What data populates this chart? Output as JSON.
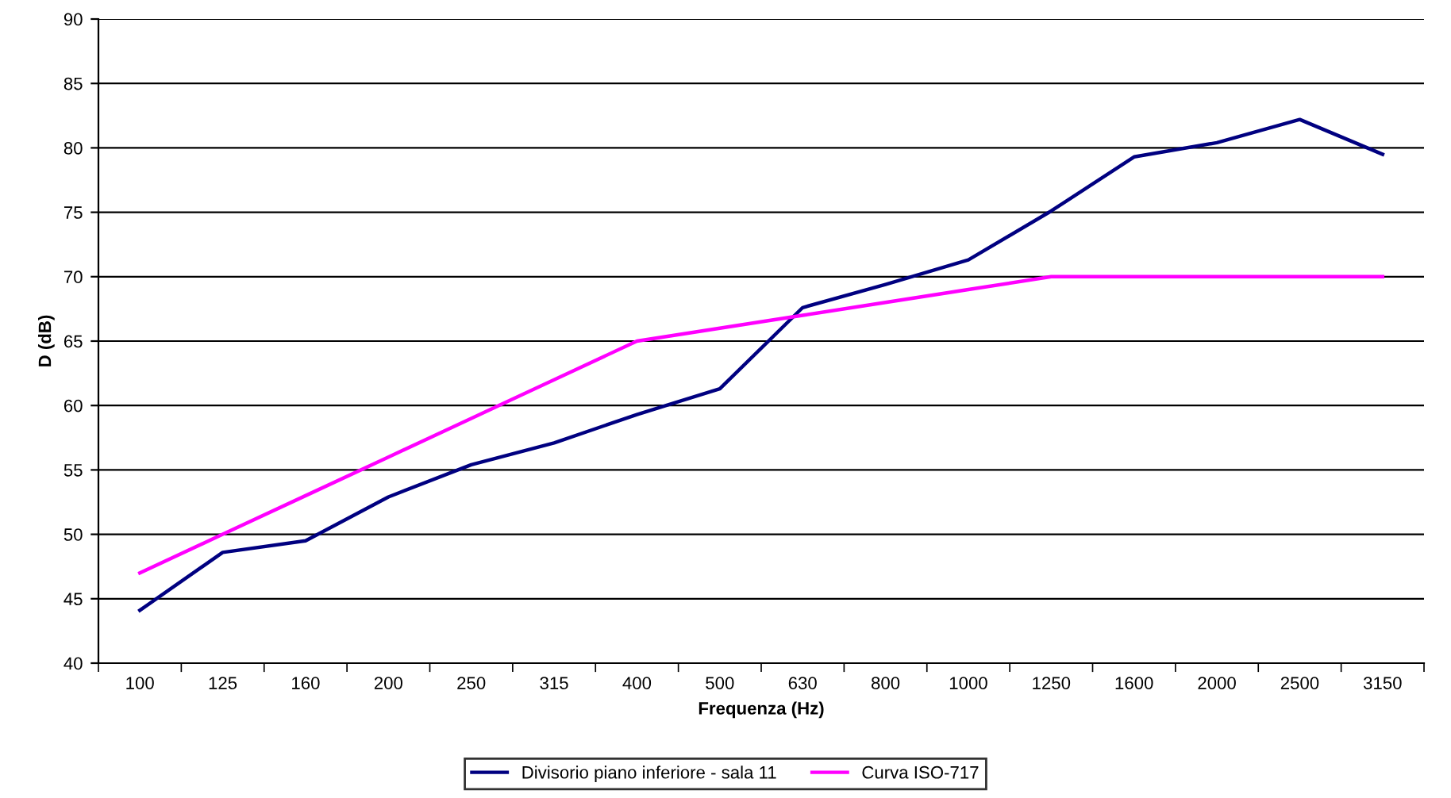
{
  "chart_data": {
    "type": "line",
    "xlabel": "Frequenza (Hz)",
    "ylabel": "D (dB)",
    "categories": [
      "100",
      "125",
      "160",
      "200",
      "250",
      "315",
      "400",
      "500",
      "630",
      "800",
      "1000",
      "1250",
      "1600",
      "2000",
      "2500",
      "3150"
    ],
    "series": [
      {
        "name": "Divisorio piano inferiore - sala 11",
        "color": "#000080",
        "values": [
          44.1,
          48.6,
          49.5,
          52.9,
          55.4,
          57.1,
          59.3,
          61.3,
          67.6,
          69.4,
          71.3,
          75.1,
          79.3,
          80.4,
          82.2,
          79.5
        ]
      },
      {
        "name": "Curva ISO-717",
        "color": "#ff00ff",
        "values": [
          47,
          50,
          53,
          56,
          59,
          62,
          65,
          66,
          67,
          68,
          69,
          70,
          70,
          70,
          70,
          70
        ]
      }
    ],
    "ylim": [
      40,
      90
    ],
    "yticks": [
      40,
      45,
      50,
      55,
      60,
      65,
      70,
      75,
      80,
      85,
      90
    ],
    "grid": "y",
    "legend": "bottom",
    "marker": "none",
    "line_style": "solid"
  }
}
